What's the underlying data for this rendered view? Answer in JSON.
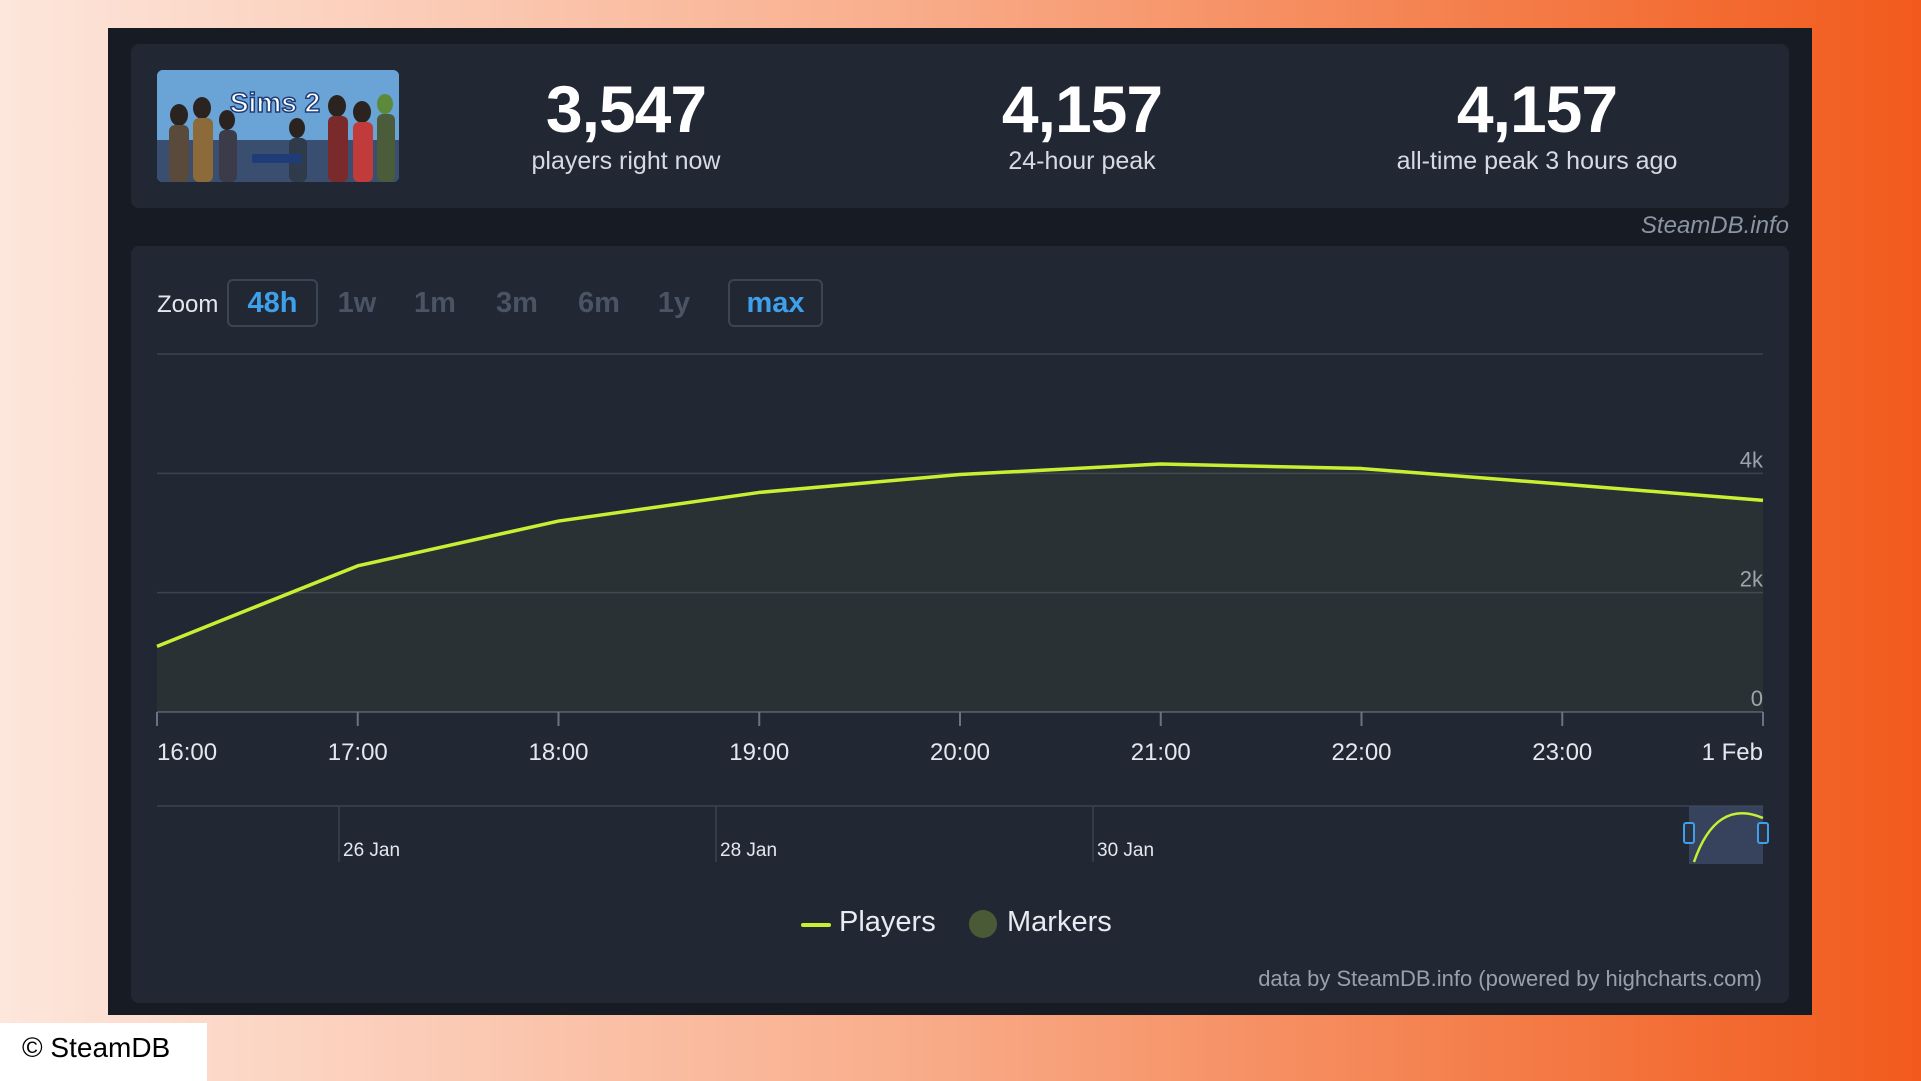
{
  "stats": {
    "current": {
      "value": "3,547",
      "label": "players right now"
    },
    "peak_24h": {
      "value": "4,157",
      "label": "24-hour peak"
    },
    "all_time": {
      "value": "4,157",
      "label": "all-time peak 3 hours ago"
    }
  },
  "game_cover": {
    "alt": "The Sims 2 Legacy Collection",
    "logo_text": "Sims 2"
  },
  "site_credit": "SteamDB.info",
  "zoom": {
    "label": "Zoom",
    "buttons": [
      "48h",
      "1w",
      "1m",
      "3m",
      "6m",
      "1y",
      "max"
    ],
    "active": [
      "48h",
      "max"
    ]
  },
  "chart_data": {
    "type": "area",
    "x": [
      "16:00",
      "17:00",
      "18:00",
      "19:00",
      "20:00",
      "21:00",
      "22:00",
      "23:00",
      "1 Feb"
    ],
    "series": [
      {
        "name": "Players",
        "values": [
          1100,
          2450,
          3200,
          3680,
          3980,
          4157,
          4080,
          3820,
          3547
        ]
      }
    ],
    "y_ticks": [
      "0",
      "2k",
      "4k"
    ],
    "ylim": [
      0,
      6000
    ],
    "grid": true,
    "navigator_labels": [
      "26 Jan",
      "28 Jan",
      "30 Jan"
    ],
    "legend": [
      "Players",
      "Markers"
    ],
    "legend_position": "bottom-center",
    "colors": {
      "line": "#c8f032",
      "markers": "#4b5a36",
      "background": "#212834"
    }
  },
  "chart_credit": "data by SteamDB.info (powered by highcharts.com)",
  "copyright": "© SteamDB"
}
